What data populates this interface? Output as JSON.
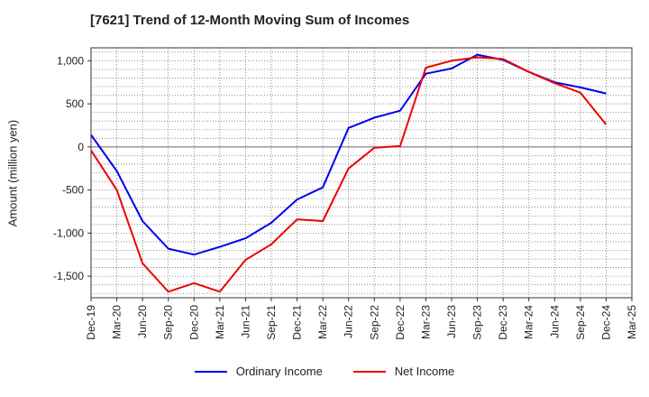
{
  "chart_data": {
    "type": "line",
    "title": "[7621]  Trend of 12-Month Moving Sum of Incomes",
    "xlabel": "",
    "ylabel": "Amount (million yen)",
    "ylim": [
      -1750,
      1150
    ],
    "yticks": [
      1000,
      500,
      0,
      -500,
      -1000,
      -1500
    ],
    "ytick_labels": [
      "1,000",
      "500",
      "0",
      "-500",
      "-1,000",
      "-1,500"
    ],
    "grid": true,
    "legend_position": "bottom-center",
    "categories": [
      "Dec-19",
      "Mar-20",
      "Jun-20",
      "Sep-20",
      "Dec-20",
      "Mar-21",
      "Jun-21",
      "Sep-21",
      "Dec-21",
      "Mar-22",
      "Jun-22",
      "Sep-22",
      "Dec-22",
      "Mar-23",
      "Jun-23",
      "Sep-23",
      "Dec-23",
      "Mar-24",
      "Jun-24",
      "Sep-24",
      "Dec-24",
      "Mar-25"
    ],
    "series": [
      {
        "name": "Ordinary Income",
        "color": "#0000ee",
        "values": [
          140,
          -280,
          -860,
          -1180,
          -1250,
          -1160,
          -1060,
          -880,
          -610,
          -470,
          220,
          340,
          420,
          850,
          910,
          1070,
          1010,
          870,
          750,
          690,
          620,
          null
        ]
      },
      {
        "name": "Net Income",
        "color": "#ee0000",
        "values": [
          -40,
          -500,
          -1350,
          -1680,
          -1580,
          -1680,
          -1310,
          -1130,
          -840,
          -860,
          -250,
          -10,
          10,
          920,
          1000,
          1040,
          1020,
          870,
          740,
          630,
          260,
          null
        ]
      }
    ]
  }
}
